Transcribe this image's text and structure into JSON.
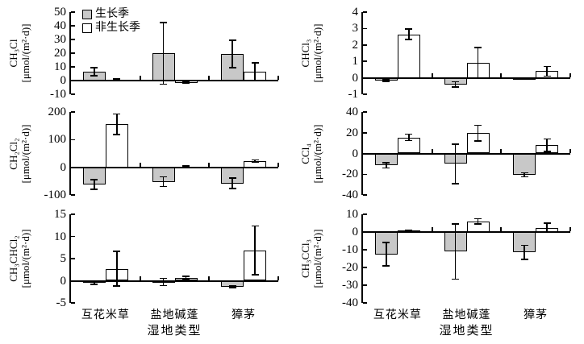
{
  "figure": {
    "legend": [
      {
        "label": "生长季",
        "color": "#c8c8c8"
      },
      {
        "label": "非生长季",
        "color": "#ffffff"
      }
    ],
    "categories": [
      "互花米草",
      "盐地碱蓬",
      "獐茅"
    ],
    "xlabel": "湿地类型",
    "line_color": "#000000",
    "background": "#ffffff"
  },
  "chart_data": [
    {
      "type": "bar",
      "id": "ch3cl",
      "formula": "CH₃Cl",
      "unit": "[μmol/(m²·d)]",
      "ylim": [
        -10,
        50
      ],
      "yticks": [
        50,
        40,
        30,
        20,
        10,
        0,
        -10
      ],
      "categories": [
        "互花米草",
        "盐地碱蓬",
        "獐茅"
      ],
      "legend_position": "top-left-inside",
      "grid": false,
      "series": [
        {
          "name": "生长季",
          "values": [
            6.5,
            20,
            19.5
          ],
          "errors": [
            3,
            22.5,
            10
          ]
        },
        {
          "name": "非生长季",
          "values": [
            0.8,
            -1.5,
            6.5
          ],
          "errors": [
            0.3,
            0.5,
            6.5
          ]
        }
      ]
    },
    {
      "type": "bar",
      "id": "ch2cl2",
      "formula": "CH₂Cl₂",
      "unit": "[μmol/(m²·d)]",
      "ylim": [
        -100,
        200
      ],
      "yticks": [
        200,
        100,
        0,
        -100
      ],
      "categories": [
        "互花米草",
        "盐地碱蓬",
        "獐茅"
      ],
      "grid": false,
      "series": [
        {
          "name": "生长季",
          "values": [
            -62,
            -52,
            -58
          ],
          "errors": [
            18,
            17,
            19
          ]
        },
        {
          "name": "非生长季",
          "values": [
            155,
            3,
            23
          ],
          "errors": [
            37,
            2,
            4
          ]
        }
      ]
    },
    {
      "type": "bar",
      "id": "ch3chcl2",
      "formula": "CH₃CHCl₂",
      "unit": "[μmol/(m²·d)]",
      "ylim": [
        -5,
        15
      ],
      "yticks": [
        15,
        10,
        5,
        0,
        -5
      ],
      "categories": [
        "互花米草",
        "盐地碱蓬",
        "獐茅"
      ],
      "grid": false,
      "series": [
        {
          "name": "生长季",
          "values": [
            -0.5,
            -0.25,
            -1.3
          ],
          "errors": [
            0.3,
            0.8,
            0.25
          ]
        },
        {
          "name": "非生长季",
          "values": [
            2.7,
            0.7,
            6.9
          ],
          "errors": [
            3.9,
            0.3,
            5.5
          ]
        }
      ]
    },
    {
      "type": "bar",
      "id": "chcl3",
      "formula": "CHCl₃",
      "unit": "[μmol/(m²·d)]",
      "ylim": [
        -1,
        4
      ],
      "yticks": [
        4,
        3,
        2,
        1,
        0,
        -1
      ],
      "categories": [
        "互花米草",
        "盐地碱蓬",
        "獐茅"
      ],
      "grid": false,
      "series": [
        {
          "name": "生长季",
          "values": [
            -0.15,
            -0.4,
            -0.05
          ],
          "errors": [
            0.06,
            0.15,
            0.03
          ]
        },
        {
          "name": "非生长季",
          "values": [
            2.65,
            0.9,
            0.4
          ],
          "errors": [
            0.32,
            0.95,
            0.3
          ]
        }
      ]
    },
    {
      "type": "bar",
      "id": "ccl4",
      "formula": "CCl₄",
      "unit": "[μmol/(m²·d)]",
      "ylim": [
        -40,
        40
      ],
      "yticks": [
        40,
        20,
        0,
        -20,
        -40
      ],
      "categories": [
        "互花米草",
        "盐地碱蓬",
        "獐茅"
      ],
      "grid": false,
      "series": [
        {
          "name": "生长季",
          "values": [
            -11.5,
            -10,
            -20.5
          ],
          "errors": [
            2.5,
            19,
            2
          ]
        },
        {
          "name": "非生长季",
          "values": [
            15.5,
            19.5,
            8
          ],
          "errors": [
            3,
            7.5,
            6
          ]
        }
      ]
    },
    {
      "type": "bar",
      "id": "ch3ccl3",
      "formula": "CH₃CCl₃",
      "unit": "[μmol/(m²·d)]",
      "ylim": [
        -40,
        10
      ],
      "yticks": [
        10,
        0,
        -10,
        -20,
        -30,
        -40
      ],
      "categories": [
        "互花米草",
        "盐地碱蓬",
        "獐茅"
      ],
      "grid": false,
      "series": [
        {
          "name": "生长季",
          "values": [
            -12.5,
            -11,
            -11.5
          ],
          "errors": [
            6.5,
            15.5,
            4
          ]
        },
        {
          "name": "非生长季",
          "values": [
            0.7,
            6,
            2.5
          ],
          "errors": [
            0.4,
            1.5,
            2.5
          ]
        }
      ]
    }
  ]
}
